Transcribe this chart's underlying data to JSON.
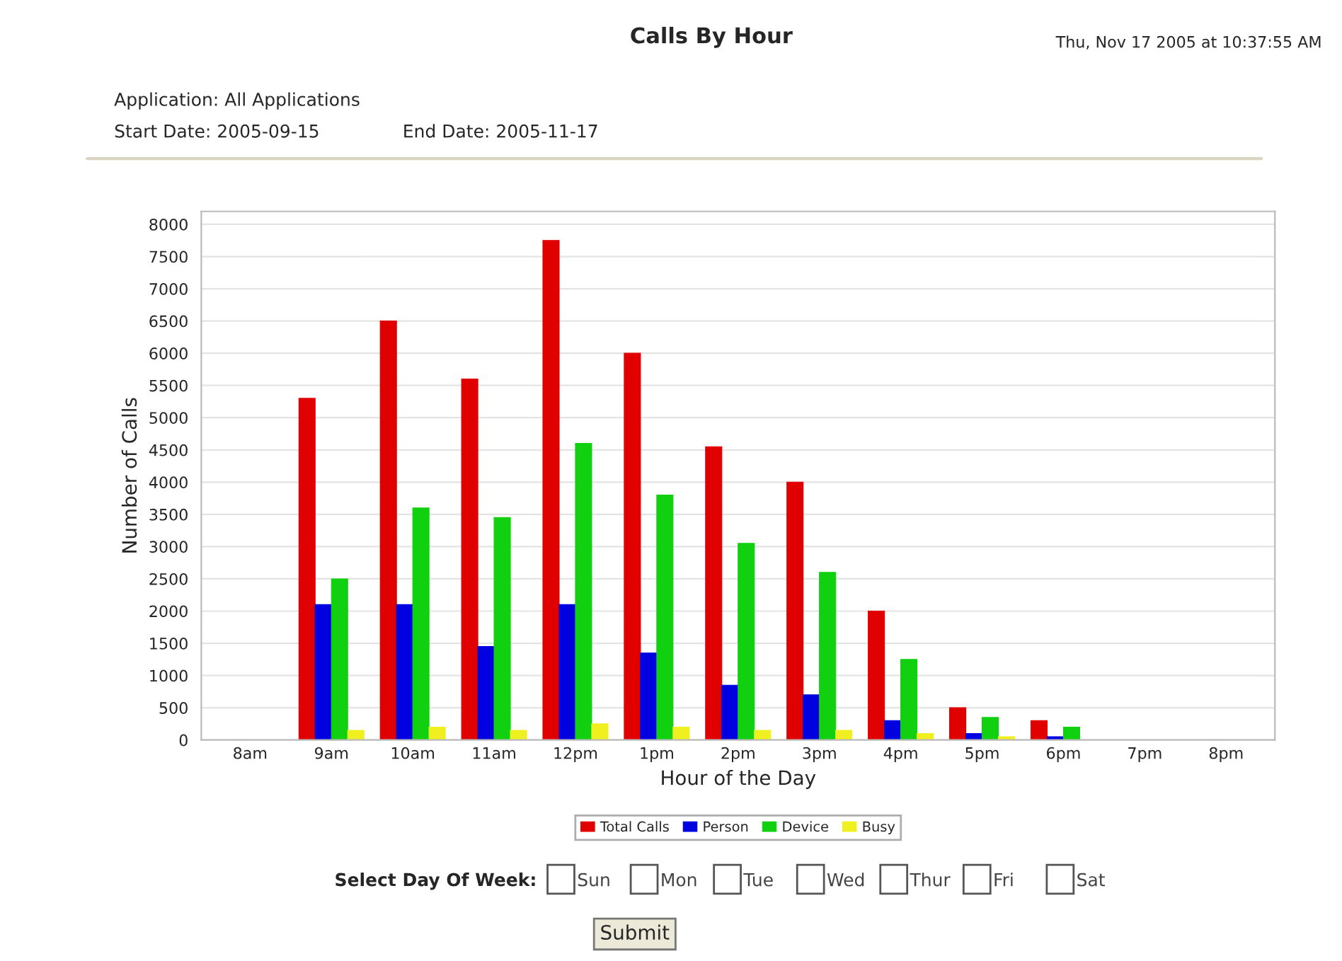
{
  "chart_data": {
    "type": "bar",
    "title": "Calls By Hour",
    "xlabel": "Hour of the Day",
    "ylabel": "Number of Calls",
    "categories": [
      "8am",
      "9am",
      "10am",
      "11am",
      "12pm",
      "1pm",
      "2pm",
      "3pm",
      "4pm",
      "5pm",
      "6pm",
      "7pm",
      "8pm"
    ],
    "series": [
      {
        "name": "Total Calls",
        "color": "#e00000",
        "values": [
          0,
          5300,
          6500,
          5600,
          7750,
          6000,
          4550,
          4000,
          2000,
          500,
          300,
          0,
          0
        ]
      },
      {
        "name": "Person",
        "color": "#0000e0",
        "values": [
          0,
          2100,
          2100,
          1450,
          2100,
          1350,
          850,
          700,
          300,
          100,
          50,
          0,
          0
        ]
      },
      {
        "name": "Device",
        "color": "#10d010",
        "values": [
          0,
          2500,
          3600,
          3450,
          4600,
          3800,
          3050,
          2600,
          1250,
          350,
          200,
          0,
          0
        ]
      },
      {
        "name": "Busy",
        "color": "#f0f020",
        "values": [
          0,
          150,
          200,
          150,
          250,
          200,
          150,
          150,
          100,
          50,
          0,
          0,
          0
        ]
      }
    ],
    "ylim": [
      0,
      8200
    ],
    "yticks": [
      0,
      500,
      1000,
      1500,
      2000,
      2500,
      3000,
      3500,
      4000,
      4500,
      5000,
      5500,
      6000,
      6500,
      7000,
      7500,
      8000
    ],
    "grid": "y",
    "legend": "bottom",
    "annotations": [
      "Thu, Nov 17 2005 at 10:37:55 AM",
      "Application: All Applications",
      "Start Date: 2005-09-15",
      "End Date: 2005-11-17",
      "Select Day Of Week:",
      "Sun",
      "Mon",
      "Tue",
      "Wed",
      "Thur",
      "Fri",
      "Sat",
      "Submit"
    ]
  }
}
